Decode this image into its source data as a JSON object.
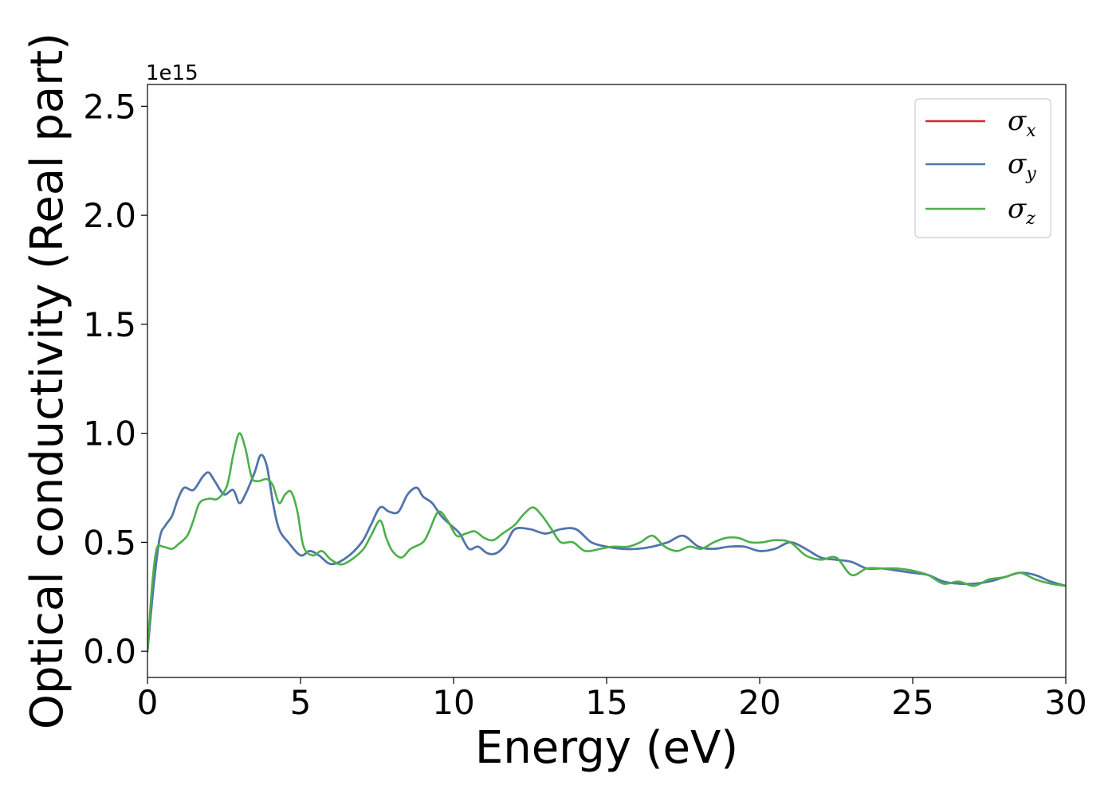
{
  "chart_data": {
    "type": "line",
    "xlabel": "Energy (eV)",
    "ylabel": "Optical conductivity (Real part)",
    "y_offset_label": "1e15",
    "xlim": [
      0,
      30
    ],
    "ylim": [
      -0.12,
      2.6
    ],
    "xticks": [
      0,
      5,
      10,
      15,
      20,
      25,
      30
    ],
    "xtick_labels": [
      "0",
      "5",
      "10",
      "15",
      "20",
      "25",
      "30"
    ],
    "yticks": [
      0.0,
      0.5,
      1.0,
      1.5,
      2.0,
      2.5
    ],
    "ytick_labels": [
      "0.0",
      "0.5",
      "1.0",
      "1.5",
      "2.0",
      "2.5"
    ],
    "grid": false,
    "legend_position": "top-right",
    "series": [
      {
        "name": "σ",
        "subscript": "x",
        "color": "#d62728",
        "x": [
          0,
          0.2,
          0.4,
          0.6,
          0.8,
          1.0,
          1.2,
          1.5,
          1.8,
          2.0,
          2.2,
          2.5,
          2.8,
          3.0,
          3.2,
          3.5,
          3.7,
          3.9,
          4.1,
          4.3,
          4.6,
          5.0,
          5.3,
          5.6,
          6.0,
          6.5,
          7.0,
          7.3,
          7.6,
          7.9,
          8.2,
          8.5,
          8.8,
          9.0,
          9.3,
          9.6,
          9.9,
          10.2,
          10.5,
          10.8,
          11.1,
          11.4,
          11.7,
          12.0,
          12.5,
          13.0,
          13.5,
          14.0,
          14.5,
          15.0,
          15.5,
          16.0,
          16.5,
          17.0,
          17.5,
          18.0,
          18.5,
          19.0,
          19.5,
          20.0,
          20.5,
          21.0,
          21.5,
          22.0,
          22.5,
          23.0,
          23.5,
          24.0,
          24.5,
          25.0,
          25.5,
          26.0,
          26.5,
          27.0,
          27.5,
          28.0,
          28.5,
          29.0,
          29.5,
          30.0
        ],
        "y": [
          0.0,
          0.3,
          0.52,
          0.58,
          0.62,
          0.7,
          0.75,
          0.74,
          0.8,
          0.82,
          0.78,
          0.72,
          0.74,
          0.68,
          0.72,
          0.82,
          0.9,
          0.85,
          0.68,
          0.56,
          0.5,
          0.44,
          0.46,
          0.44,
          0.4,
          0.43,
          0.5,
          0.58,
          0.66,
          0.64,
          0.64,
          0.72,
          0.75,
          0.71,
          0.68,
          0.62,
          0.58,
          0.54,
          0.47,
          0.48,
          0.45,
          0.45,
          0.49,
          0.56,
          0.56,
          0.54,
          0.56,
          0.56,
          0.5,
          0.48,
          0.47,
          0.47,
          0.48,
          0.5,
          0.53,
          0.48,
          0.47,
          0.48,
          0.48,
          0.46,
          0.47,
          0.5,
          0.47,
          0.43,
          0.42,
          0.41,
          0.38,
          0.38,
          0.37,
          0.36,
          0.35,
          0.32,
          0.31,
          0.31,
          0.32,
          0.34,
          0.36,
          0.35,
          0.32,
          0.3
        ]
      },
      {
        "name": "σ",
        "subscript": "y",
        "color": "#4a78b0",
        "x": [
          0,
          0.2,
          0.4,
          0.6,
          0.8,
          1.0,
          1.2,
          1.5,
          1.8,
          2.0,
          2.2,
          2.5,
          2.8,
          3.0,
          3.2,
          3.5,
          3.7,
          3.9,
          4.1,
          4.3,
          4.6,
          5.0,
          5.3,
          5.6,
          6.0,
          6.5,
          7.0,
          7.3,
          7.6,
          7.9,
          8.2,
          8.5,
          8.8,
          9.0,
          9.3,
          9.6,
          9.9,
          10.2,
          10.5,
          10.8,
          11.1,
          11.4,
          11.7,
          12.0,
          12.5,
          13.0,
          13.5,
          14.0,
          14.5,
          15.0,
          15.5,
          16.0,
          16.5,
          17.0,
          17.5,
          18.0,
          18.5,
          19.0,
          19.5,
          20.0,
          20.5,
          21.0,
          21.5,
          22.0,
          22.5,
          23.0,
          23.5,
          24.0,
          24.5,
          25.0,
          25.5,
          26.0,
          26.5,
          27.0,
          27.5,
          28.0,
          28.5,
          29.0,
          29.5,
          30.0
        ],
        "y": [
          0.0,
          0.3,
          0.52,
          0.58,
          0.62,
          0.7,
          0.75,
          0.74,
          0.8,
          0.82,
          0.78,
          0.72,
          0.74,
          0.68,
          0.72,
          0.82,
          0.9,
          0.85,
          0.68,
          0.56,
          0.5,
          0.44,
          0.46,
          0.44,
          0.4,
          0.43,
          0.5,
          0.58,
          0.66,
          0.64,
          0.64,
          0.72,
          0.75,
          0.71,
          0.68,
          0.62,
          0.58,
          0.54,
          0.47,
          0.48,
          0.45,
          0.45,
          0.49,
          0.56,
          0.56,
          0.54,
          0.56,
          0.56,
          0.5,
          0.48,
          0.47,
          0.47,
          0.48,
          0.5,
          0.53,
          0.48,
          0.47,
          0.48,
          0.48,
          0.46,
          0.47,
          0.5,
          0.47,
          0.43,
          0.42,
          0.41,
          0.38,
          0.38,
          0.37,
          0.36,
          0.35,
          0.32,
          0.31,
          0.31,
          0.32,
          0.34,
          0.36,
          0.35,
          0.32,
          0.3
        ]
      },
      {
        "name": "σ",
        "subscript": "z",
        "color": "#4daf4a",
        "x": [
          0,
          0.15,
          0.3,
          0.5,
          0.8,
          1.0,
          1.3,
          1.5,
          1.7,
          2.0,
          2.3,
          2.6,
          2.8,
          3.0,
          3.2,
          3.4,
          3.6,
          3.9,
          4.1,
          4.3,
          4.5,
          4.7,
          4.9,
          5.1,
          5.4,
          5.7,
          6.0,
          6.4,
          7.0,
          7.3,
          7.6,
          7.8,
          8.0,
          8.3,
          8.6,
          9.0,
          9.2,
          9.5,
          9.8,
          10.1,
          10.4,
          10.7,
          11.0,
          11.3,
          11.6,
          12.0,
          12.3,
          12.6,
          12.9,
          13.2,
          13.5,
          13.9,
          14.3,
          14.8,
          15.2,
          15.7,
          16.1,
          16.5,
          16.9,
          17.3,
          17.7,
          18.1,
          18.5,
          18.9,
          19.3,
          19.7,
          20.1,
          20.5,
          21.0,
          21.5,
          22.0,
          22.5,
          23.0,
          23.5,
          24.0,
          24.5,
          25.0,
          25.5,
          26.0,
          26.5,
          27.0,
          27.5,
          28.0,
          28.5,
          29.0,
          29.5,
          30.0
        ],
        "y": [
          0.0,
          0.3,
          0.47,
          0.48,
          0.47,
          0.49,
          0.53,
          0.6,
          0.68,
          0.7,
          0.7,
          0.76,
          0.9,
          1.0,
          0.93,
          0.8,
          0.78,
          0.79,
          0.76,
          0.68,
          0.72,
          0.73,
          0.64,
          0.48,
          0.44,
          0.46,
          0.42,
          0.4,
          0.46,
          0.53,
          0.6,
          0.52,
          0.46,
          0.43,
          0.47,
          0.5,
          0.55,
          0.64,
          0.6,
          0.53,
          0.54,
          0.55,
          0.52,
          0.51,
          0.54,
          0.58,
          0.63,
          0.66,
          0.62,
          0.56,
          0.5,
          0.5,
          0.46,
          0.47,
          0.48,
          0.48,
          0.5,
          0.53,
          0.48,
          0.46,
          0.48,
          0.47,
          0.5,
          0.52,
          0.52,
          0.5,
          0.5,
          0.51,
          0.5,
          0.44,
          0.42,
          0.43,
          0.35,
          0.38,
          0.38,
          0.38,
          0.37,
          0.35,
          0.31,
          0.32,
          0.3,
          0.33,
          0.34,
          0.36,
          0.33,
          0.31,
          0.3
        ]
      }
    ]
  }
}
